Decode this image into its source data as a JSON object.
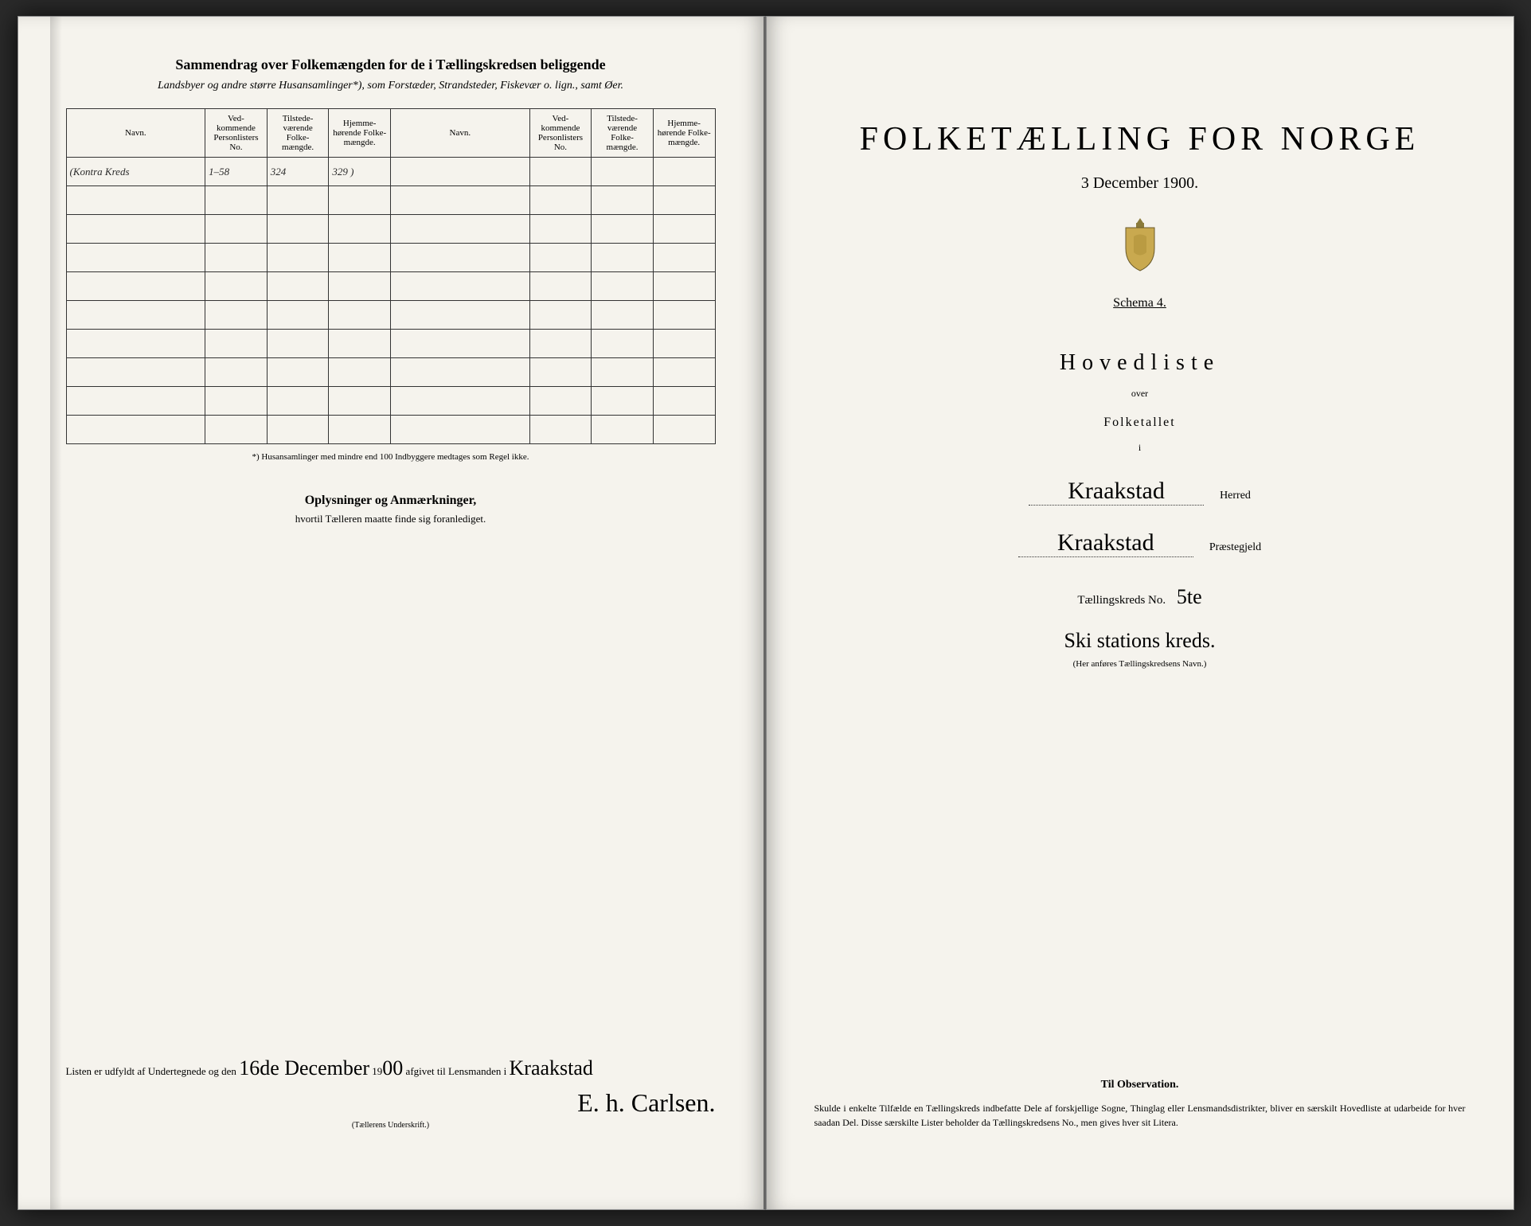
{
  "left": {
    "header_title": "Sammendrag over Folkemængden for de i Tællingskredsen beliggende",
    "header_sub": "Landsbyer og andre større Husansamlinger*), som Forstæder, Strandsteder, Fiskevær o. lign., samt Øer.",
    "columns": {
      "navn": "Navn.",
      "vedkom": "Ved-kommende Personlisters No.",
      "tilstede": "Tilstede-værende Folke-mængde.",
      "hjemme": "Hjemme-hørende Folke-mængde."
    },
    "rows": [
      {
        "navn": "(Kontra Kreds",
        "no": "1–58",
        "tilstede": "324",
        "hjemme": "329 )"
      }
    ],
    "footnote": "*) Husansamlinger med mindre end 100 Indbyggere medtages som Regel ikke.",
    "oplys_title": "Oplysninger og Anmærkninger,",
    "oplys_sub": "hvortil Tælleren maatte finde sig foranlediget.",
    "sig_pre": "Listen er udfyldt af Undertegnede og den",
    "sig_date": "16de December",
    "sig_year": "1900",
    "sig_mid": "afgivet til Lensmanden i",
    "sig_place": "Kraakstad",
    "sig_name": "E. h. Carlsen.",
    "sig_label": "(Tællerens Underskrift.)"
  },
  "right": {
    "title": "FOLKETÆLLING FOR NORGE",
    "date": "3 December 1900.",
    "schema": "Schema 4.",
    "hovedliste": "Hovedliste",
    "over": "over",
    "folketallet": "Folketallet",
    "i": "i",
    "herred_val": "Kraakstad",
    "herred_lbl": "Herred",
    "praeste_val": "Kraakstad",
    "praeste_lbl": "Præstegjeld",
    "kreds_lbl": "Tællingskreds No.",
    "kreds_no": "5te",
    "kreds_name": "Ski stations kreds.",
    "kreds_note": "(Her anføres Tællingskredsens Navn.)",
    "obs_title": "Til Observation.",
    "obs_text": "Skulde i enkelte Tilfælde en Tællingskreds indbefatte Dele af forskjellige Sogne, Thinglag eller Lensmandsdistrikter, bliver en særskilt Hovedliste at udarbeide for hver saadan Del. Disse særskilte Lister beholder da Tællingskredsens No., men gives hver sit Litera."
  },
  "style": {
    "paper_color": "#f5f3ed",
    "ink_color": "#2a2a2a",
    "border_color": "#333333",
    "empty_rows": 9
  }
}
